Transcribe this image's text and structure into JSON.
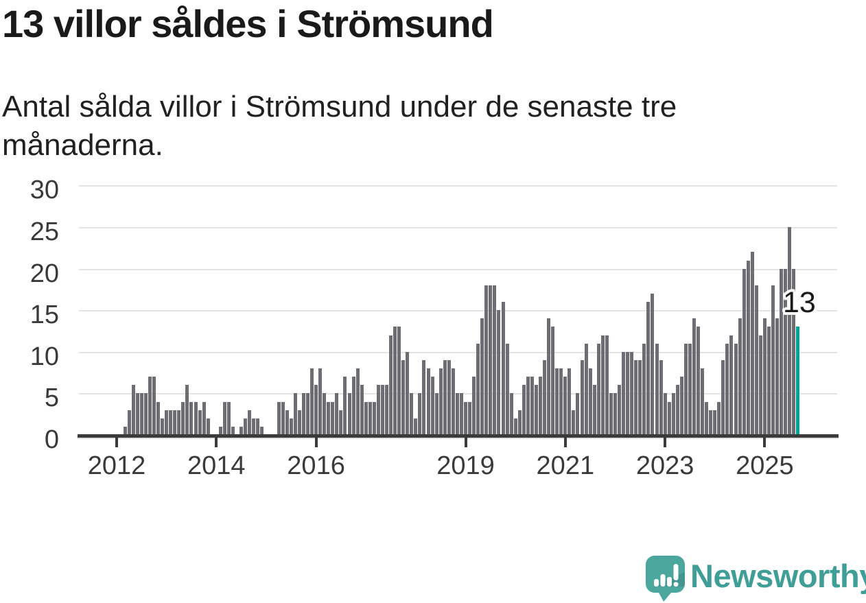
{
  "header": {
    "title": "13 villor såldes i Strömsund",
    "subtitle": "Antal sålda villor i Strömsund under de senaste tre månaderna.",
    "subtitle_lines": [
      "Antal sålda villor i Strömsund under de senaste tre",
      "månaderna."
    ]
  },
  "footer": {
    "brand": "Newsworthy",
    "logo_icon": "newsworthy-speech-bubble-bar-chart-icon"
  },
  "colors": {
    "bar": "#6d6d73",
    "highlight": "#00a39c",
    "grid": "#e4e4e4",
    "axis": "#3b3b3b",
    "title_text": "#1a1a1a",
    "axis_text": "#3a3a3a",
    "brand_teal": "#3f9f97",
    "logo_teal": "#4ba69d",
    "annotation_text": "#1a1a1a",
    "annotation_halo": "#ffffff",
    "background": "#ffffff"
  },
  "chart_data": {
    "type": "bar",
    "title": "13 villor såldes i Strömsund",
    "subtitle": "Antal sålda villor i Strömsund under de senaste tre månaderna.",
    "xlabel": "",
    "ylabel": "",
    "ylim": [
      0,
      30
    ],
    "y_ticks": [
      0,
      5,
      10,
      15,
      20,
      25,
      30
    ],
    "x_tick_years": [
      2012,
      2014,
      2016,
      2019,
      2021,
      2023,
      2025
    ],
    "grid": true,
    "legend_position": "none",
    "start_month": "2012-01",
    "end_month": "2025-09",
    "frequency": "monthly",
    "highlight": {
      "position": "last",
      "value": 13,
      "label": "13"
    },
    "series_by_year": [
      {
        "year": 2012,
        "values": [
          0,
          0,
          1,
          3,
          6,
          5,
          5,
          5,
          7,
          7,
          4,
          2
        ]
      },
      {
        "year": 2013,
        "values": [
          3,
          3,
          3,
          3,
          4,
          6,
          4,
          4,
          3,
          4,
          2,
          0
        ]
      },
      {
        "year": 2014,
        "values": [
          0,
          1,
          4,
          4,
          1,
          0,
          1,
          2,
          3,
          2,
          2,
          1
        ]
      },
      {
        "year": 2015,
        "values": [
          0,
          0,
          0,
          4,
          4,
          3,
          2,
          5,
          3,
          5,
          5,
          8
        ]
      },
      {
        "year": 2016,
        "values": [
          6,
          8,
          5,
          4,
          4,
          5,
          3,
          7,
          5,
          7,
          8,
          6
        ]
      },
      {
        "year": 2017,
        "values": [
          4,
          4,
          4,
          6,
          6,
          6,
          12,
          13,
          13,
          9,
          10,
          5
        ]
      },
      {
        "year": 2018,
        "values": [
          2,
          5,
          9,
          8,
          7,
          5,
          8,
          9,
          9,
          8,
          5,
          5
        ]
      },
      {
        "year": 2019,
        "values": [
          4,
          4,
          7,
          11,
          14,
          18,
          18,
          18,
          15,
          16,
          11,
          5
        ]
      },
      {
        "year": 2020,
        "values": [
          2,
          3,
          6,
          7,
          7,
          6,
          7,
          9,
          14,
          13,
          8,
          8
        ]
      },
      {
        "year": 2021,
        "values": [
          7,
          8,
          3,
          5,
          9,
          11,
          8,
          6,
          11,
          12,
          12,
          5
        ]
      },
      {
        "year": 2022,
        "values": [
          5,
          6,
          10,
          10,
          10,
          9,
          9,
          11,
          16,
          17,
          11,
          9
        ]
      },
      {
        "year": 2023,
        "values": [
          5,
          4,
          5,
          6,
          7,
          11,
          11,
          14,
          13,
          8,
          4,
          3
        ]
      },
      {
        "year": 2024,
        "values": [
          3,
          4,
          9,
          11,
          12,
          11,
          14,
          20,
          21,
          22,
          18,
          12
        ]
      },
      {
        "year": 2025,
        "values": [
          14,
          13,
          18,
          14,
          20,
          20,
          25,
          20,
          13
        ]
      }
    ]
  }
}
